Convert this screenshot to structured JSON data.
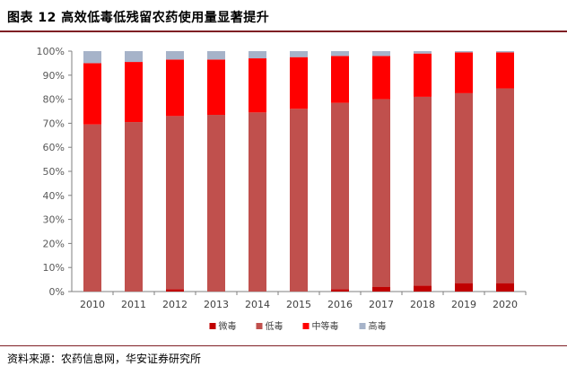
{
  "header": {
    "figure_label": "图表 12",
    "title": "高效低毒低残留农药使用量显著提升"
  },
  "chart_data": {
    "type": "bar",
    "stacked": true,
    "categories": [
      "2010",
      "2011",
      "2012",
      "2013",
      "2014",
      "2015",
      "2016",
      "2017",
      "2018",
      "2019",
      "2020"
    ],
    "series": [
      {
        "name": "微毒",
        "color": "#c00000",
        "values": [
          0,
          0,
          1,
          0,
          0,
          0,
          1,
          2,
          2.5,
          3.5,
          3.5
        ]
      },
      {
        "name": "低毒",
        "color": "#c0504d",
        "values": [
          69.5,
          70.5,
          72,
          73.5,
          74.5,
          76,
          77.5,
          78,
          78.5,
          79,
          81
        ]
      },
      {
        "name": "中等毒",
        "color": "#ff0000",
        "values": [
          25.5,
          25,
          23.5,
          23,
          22.5,
          21.5,
          19.5,
          18,
          18,
          17,
          15
        ]
      },
      {
        "name": "高毒",
        "color": "#a6b3c9",
        "values": [
          5,
          4.5,
          3.5,
          3.5,
          3,
          2.5,
          2,
          2,
          1,
          0.5,
          0.5
        ]
      }
    ],
    "yticks": [
      "0%",
      "10%",
      "20%",
      "30%",
      "40%",
      "50%",
      "60%",
      "70%",
      "80%",
      "90%",
      "100%"
    ],
    "ylim": [
      0,
      100
    ],
    "grid": false,
    "legend_position": "bottom"
  },
  "footer": {
    "source": "资料来源：农药信息网，华安证券研究所"
  }
}
